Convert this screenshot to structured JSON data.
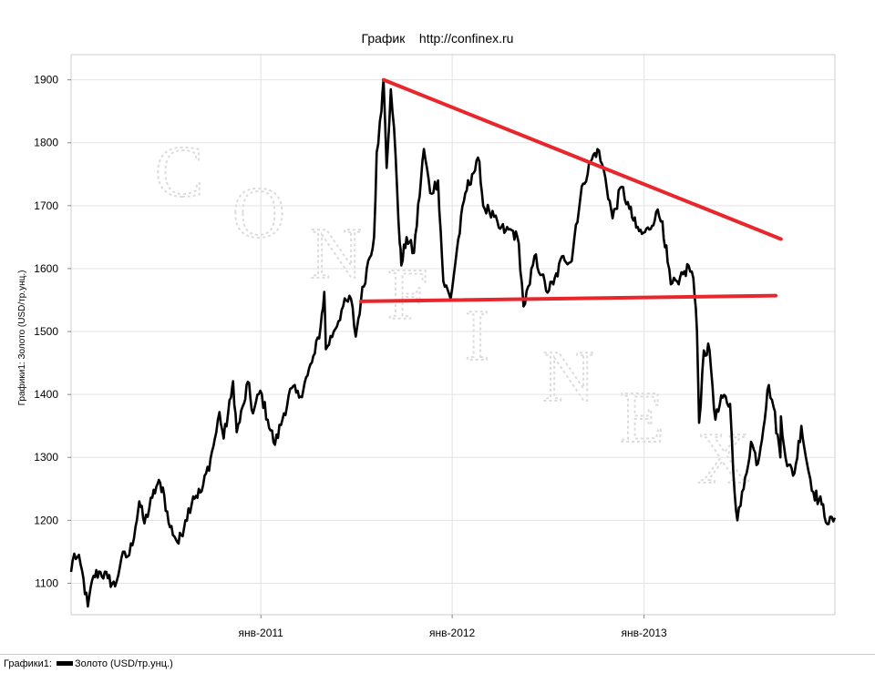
{
  "chart_data": {
    "type": "line",
    "title": "График    http://confinex.ru",
    "ylabel": "Графики1: Золото (USD/тр.унц.)",
    "xlabel": "",
    "ylim": [
      1050,
      1940
    ],
    "y_ticks": [
      1100,
      1200,
      1300,
      1400,
      1500,
      1600,
      1700,
      1800,
      1900
    ],
    "x_range": [
      "2010-01-04",
      "2013-12-31"
    ],
    "x_ticks": [
      {
        "date": "2011-01-01",
        "label": "янв-2011"
      },
      {
        "date": "2012-01-01",
        "label": "янв-2012"
      },
      {
        "date": "2013-01-01",
        "label": "янв-2013"
      }
    ],
    "grid": true,
    "watermark": "CONFINEX",
    "series": [
      {
        "name": "Золото (USD/тр.унц.)",
        "color": "#000000",
        "points": [
          [
            "2010-01-04",
            1118
          ],
          [
            "2010-01-10",
            1147
          ],
          [
            "2010-01-22",
            1130
          ],
          [
            "2010-02-05",
            1063
          ],
          [
            "2010-02-16",
            1112
          ],
          [
            "2010-03-01",
            1118
          ],
          [
            "2010-03-15",
            1108
          ],
          [
            "2010-03-29",
            1095
          ],
          [
            "2010-04-10",
            1140
          ],
          [
            "2010-04-25",
            1145
          ],
          [
            "2010-05-07",
            1190
          ],
          [
            "2010-05-14",
            1230
          ],
          [
            "2010-05-24",
            1195
          ],
          [
            "2010-06-08",
            1236
          ],
          [
            "2010-06-18",
            1258
          ],
          [
            "2010-06-28",
            1252
          ],
          [
            "2010-07-09",
            1196
          ],
          [
            "2010-07-28",
            1163
          ],
          [
            "2010-08-10",
            1200
          ],
          [
            "2010-08-25",
            1238
          ],
          [
            "2010-09-10",
            1246
          ],
          [
            "2010-09-27",
            1298
          ],
          [
            "2010-10-08",
            1340
          ],
          [
            "2010-10-14",
            1372
          ],
          [
            "2010-10-22",
            1330
          ],
          [
            "2010-11-05",
            1395
          ],
          [
            "2010-11-09",
            1421
          ],
          [
            "2010-11-16",
            1340
          ],
          [
            "2010-11-30",
            1386
          ],
          [
            "2010-12-07",
            1420
          ],
          [
            "2010-12-17",
            1370
          ],
          [
            "2010-12-31",
            1406
          ],
          [
            "2011-01-14",
            1360
          ],
          [
            "2011-01-28",
            1320
          ],
          [
            "2011-02-14",
            1370
          ],
          [
            "2011-03-01",
            1410
          ],
          [
            "2011-03-15",
            1395
          ],
          [
            "2011-03-31",
            1430
          ],
          [
            "2011-04-14",
            1465
          ],
          [
            "2011-04-25",
            1508
          ],
          [
            "2011-05-02",
            1563
          ],
          [
            "2011-05-05",
            1472
          ],
          [
            "2011-05-20",
            1500
          ],
          [
            "2011-06-07",
            1540
          ],
          [
            "2011-06-22",
            1552
          ],
          [
            "2011-07-01",
            1492
          ],
          [
            "2011-07-11",
            1550
          ],
          [
            "2011-07-22",
            1600
          ],
          [
            "2011-08-05",
            1650
          ],
          [
            "2011-08-10",
            1785
          ],
          [
            "2011-08-19",
            1850
          ],
          [
            "2011-08-23",
            1900
          ],
          [
            "2011-08-29",
            1760
          ],
          [
            "2011-09-06",
            1885
          ],
          [
            "2011-09-15",
            1780
          ],
          [
            "2011-09-23",
            1640
          ],
          [
            "2011-09-26",
            1605
          ],
          [
            "2011-10-06",
            1650
          ],
          [
            "2011-10-20",
            1625
          ],
          [
            "2011-11-08",
            1790
          ],
          [
            "2011-11-20",
            1720
          ],
          [
            "2011-12-05",
            1740
          ],
          [
            "2011-12-15",
            1580
          ],
          [
            "2011-12-29",
            1552
          ],
          [
            "2012-01-10",
            1630
          ],
          [
            "2012-01-26",
            1720
          ],
          [
            "2012-02-08",
            1750
          ],
          [
            "2012-02-22",
            1770
          ],
          [
            "2012-02-29",
            1700
          ],
          [
            "2012-03-12",
            1690
          ],
          [
            "2012-03-30",
            1665
          ],
          [
            "2012-04-12",
            1660
          ],
          [
            "2012-04-26",
            1660
          ],
          [
            "2012-05-07",
            1640
          ],
          [
            "2012-05-16",
            1540
          ],
          [
            "2012-05-28",
            1575
          ],
          [
            "2012-06-06",
            1620
          ],
          [
            "2012-06-20",
            1590
          ],
          [
            "2012-06-28",
            1565
          ],
          [
            "2012-07-12",
            1575
          ],
          [
            "2012-07-31",
            1620
          ],
          [
            "2012-08-16",
            1612
          ],
          [
            "2012-08-24",
            1670
          ],
          [
            "2012-09-07",
            1735
          ],
          [
            "2012-09-21",
            1770
          ],
          [
            "2012-10-04",
            1790
          ],
          [
            "2012-10-19",
            1745
          ],
          [
            "2012-11-02",
            1680
          ],
          [
            "2012-11-19",
            1730
          ],
          [
            "2012-12-04",
            1695
          ],
          [
            "2012-12-17",
            1665
          ],
          [
            "2012-12-28",
            1655
          ],
          [
            "2013-01-11",
            1662
          ],
          [
            "2013-01-24",
            1690
          ],
          [
            "2013-02-05",
            1675
          ],
          [
            "2013-02-15",
            1610
          ],
          [
            "2013-02-21",
            1575
          ],
          [
            "2013-03-08",
            1575
          ],
          [
            "2013-03-27",
            1605
          ],
          [
            "2013-04-05",
            1585
          ],
          [
            "2013-04-12",
            1500
          ],
          [
            "2013-04-16",
            1355
          ],
          [
            "2013-04-25",
            1470
          ],
          [
            "2013-05-06",
            1470
          ],
          [
            "2013-05-17",
            1360
          ],
          [
            "2013-05-31",
            1395
          ],
          [
            "2013-06-14",
            1385
          ],
          [
            "2013-06-20",
            1280
          ],
          [
            "2013-06-28",
            1200
          ],
          [
            "2013-07-10",
            1250
          ],
          [
            "2013-07-24",
            1325
          ],
          [
            "2013-08-06",
            1290
          ],
          [
            "2013-08-27",
            1415
          ],
          [
            "2013-09-05",
            1380
          ],
          [
            "2013-09-18",
            1300
          ],
          [
            "2013-09-19",
            1365
          ],
          [
            "2013-10-01",
            1286
          ],
          [
            "2013-10-15",
            1275
          ],
          [
            "2013-10-28",
            1350
          ],
          [
            "2013-11-08",
            1290
          ],
          [
            "2013-11-20",
            1245
          ],
          [
            "2013-12-06",
            1225
          ],
          [
            "2013-12-19",
            1194
          ],
          [
            "2013-12-31",
            1204
          ]
        ]
      }
    ],
    "trendlines": [
      {
        "color": "#e8262c",
        "from": [
          "2011-08-23",
          1900
        ],
        "to": [
          "2013-09-19",
          1647
        ]
      },
      {
        "color": "#e8262c",
        "from": [
          "2011-07-11",
          1548
        ],
        "to": [
          "2013-09-09",
          1557
        ]
      }
    ],
    "legend": {
      "position": "bottom-left",
      "prefix": "Графики1:",
      "entry": "Золото (USD/тр.унц.)"
    }
  }
}
